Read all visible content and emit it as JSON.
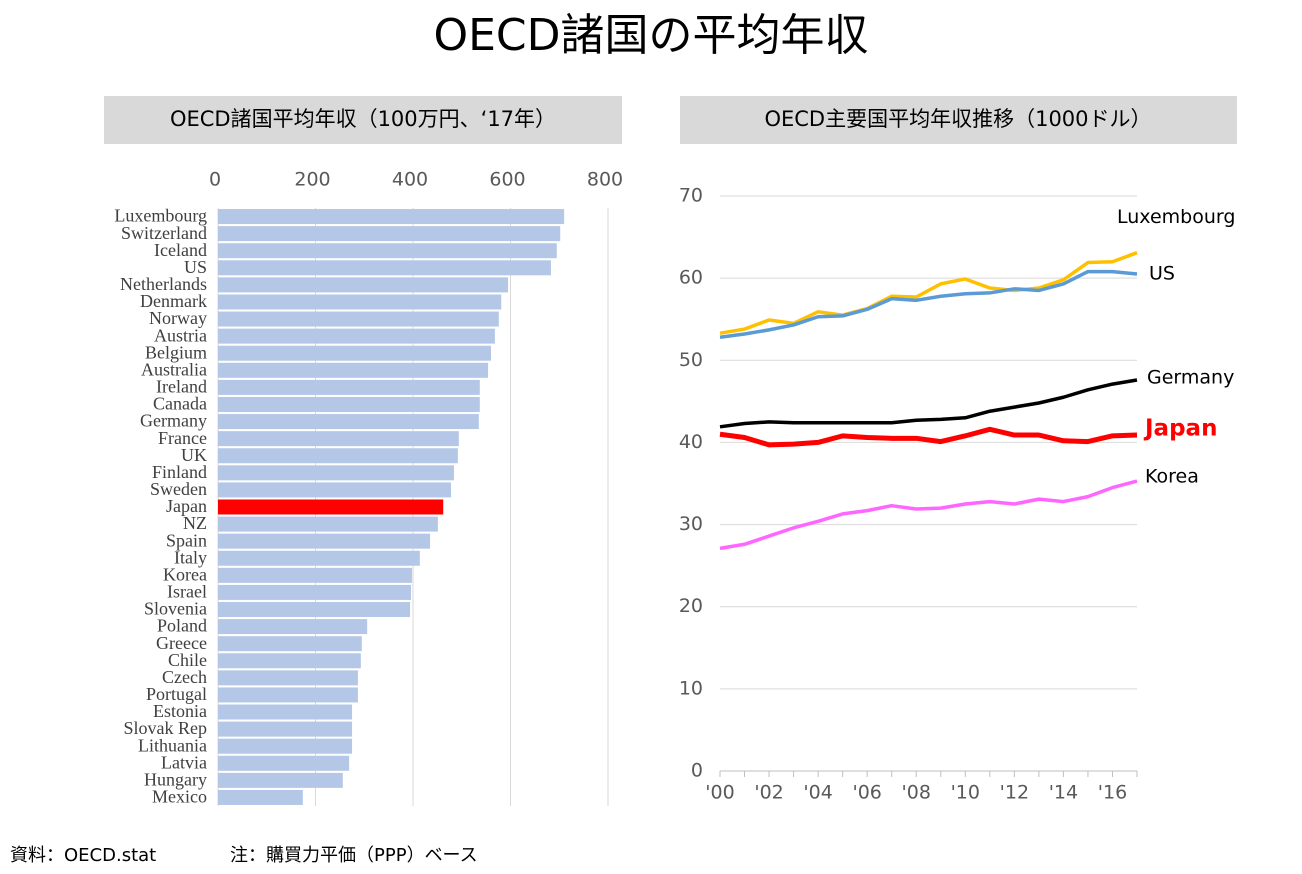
{
  "title": "OECD諸国の平均年収",
  "footnote": {
    "source": "資料：OECD.stat",
    "note": "注：購買力平価（PPP）ベース"
  },
  "chart_data": [
    {
      "type": "hbar",
      "title": "OECD諸国平均年収（100万円、‘17年）",
      "categories": [
        "Luxembourg",
        "Switzerland",
        "Iceland",
        "US",
        "Netherlands",
        "Denmark",
        "Norway",
        "Austria",
        "Belgium",
        "Australia",
        "Ireland",
        "Canada",
        "Germany",
        "France",
        "UK",
        "Finland",
        "Sweden",
        "Japan",
        "NZ",
        "Spain",
        "Italy",
        "Korea",
        "Israel",
        "Slovenia",
        "Poland",
        "Greece",
        "Chile",
        "Czech",
        "Portugal",
        "Estonia",
        "Slovak Rep",
        "Lithuania",
        "Latvia",
        "Hungary",
        "Mexico"
      ],
      "values": [
        710,
        702,
        695,
        683,
        595,
        581,
        576,
        568,
        560,
        554,
        537,
        537,
        535,
        494,
        492,
        484,
        478,
        462,
        451,
        435,
        414,
        398,
        396,
        394,
        306,
        295,
        293,
        287,
        287,
        275,
        275,
        275,
        269,
        256,
        174
      ],
      "colors": [
        "#b4c7e7",
        "#b4c7e7",
        "#b4c7e7",
        "#b4c7e7",
        "#b4c7e7",
        "#b4c7e7",
        "#b4c7e7",
        "#b4c7e7",
        "#b4c7e7",
        "#b4c7e7",
        "#b4c7e7",
        "#b4c7e7",
        "#b4c7e7",
        "#b4c7e7",
        "#b4c7e7",
        "#b4c7e7",
        "#b4c7e7",
        "#ff0000",
        "#b4c7e7",
        "#b4c7e7",
        "#b4c7e7",
        "#b4c7e7",
        "#b4c7e7",
        "#b4c7e7",
        "#b4c7e7",
        "#b4c7e7",
        "#b4c7e7",
        "#b4c7e7",
        "#b4c7e7",
        "#b4c7e7",
        "#b4c7e7",
        "#b4c7e7",
        "#b4c7e7",
        "#b4c7e7",
        "#b4c7e7"
      ],
      "xlim": [
        0,
        800
      ],
      "xticks": [
        0,
        200,
        400,
        600,
        800
      ],
      "grid": true
    },
    {
      "type": "line",
      "title": "OECD主要国平均年収推移（1000ドル）",
      "categories": [
        "'00",
        null,
        "'02",
        null,
        "'04",
        null,
        "'06",
        null,
        "'08",
        null,
        "'10",
        null,
        "'12",
        null,
        "'14",
        null,
        "'16",
        null
      ],
      "series": [
        {
          "name": "Luxembourg",
          "color": "#ffc000",
          "values": [
            53.3,
            53.8,
            54.9,
            54.5,
            55.9,
            55.5,
            56.3,
            57.8,
            57.7,
            59.3,
            59.9,
            58.8,
            58.5,
            58.8,
            59.8,
            61.9,
            62.0,
            63.1
          ]
        },
        {
          "name": "US",
          "color": "#5b9bd5",
          "values": [
            52.8,
            53.2,
            53.7,
            54.3,
            55.3,
            55.4,
            56.2,
            57.5,
            57.3,
            57.8,
            58.1,
            58.2,
            58.7,
            58.5,
            59.3,
            60.8,
            60.8,
            60.5
          ]
        },
        {
          "name": "Germany",
          "color": "#000000",
          "values": [
            41.9,
            42.3,
            42.5,
            42.4,
            42.4,
            42.4,
            42.4,
            42.4,
            42.7,
            42.8,
            43.0,
            43.8,
            44.3,
            44.8,
            45.5,
            46.4,
            47.1,
            47.6
          ]
        },
        {
          "name": "Japan",
          "color": "#ff0000",
          "emphasis": true,
          "values": [
            41.0,
            40.6,
            39.7,
            39.8,
            40.0,
            40.8,
            40.6,
            40.5,
            40.5,
            40.1,
            40.8,
            41.6,
            40.9,
            40.9,
            40.2,
            40.1,
            40.8,
            40.9
          ]
        },
        {
          "name": "Korea",
          "color": "#ff66ff",
          "values": [
            27.1,
            27.6,
            28.6,
            29.6,
            30.4,
            31.3,
            31.7,
            32.3,
            31.9,
            32.0,
            32.5,
            32.8,
            32.5,
            33.1,
            32.8,
            33.4,
            34.5,
            35.3
          ]
        }
      ],
      "ylim": [
        0,
        70
      ],
      "yticks": [
        0,
        10,
        20,
        30,
        40,
        50,
        60,
        70
      ],
      "grid": true
    }
  ]
}
